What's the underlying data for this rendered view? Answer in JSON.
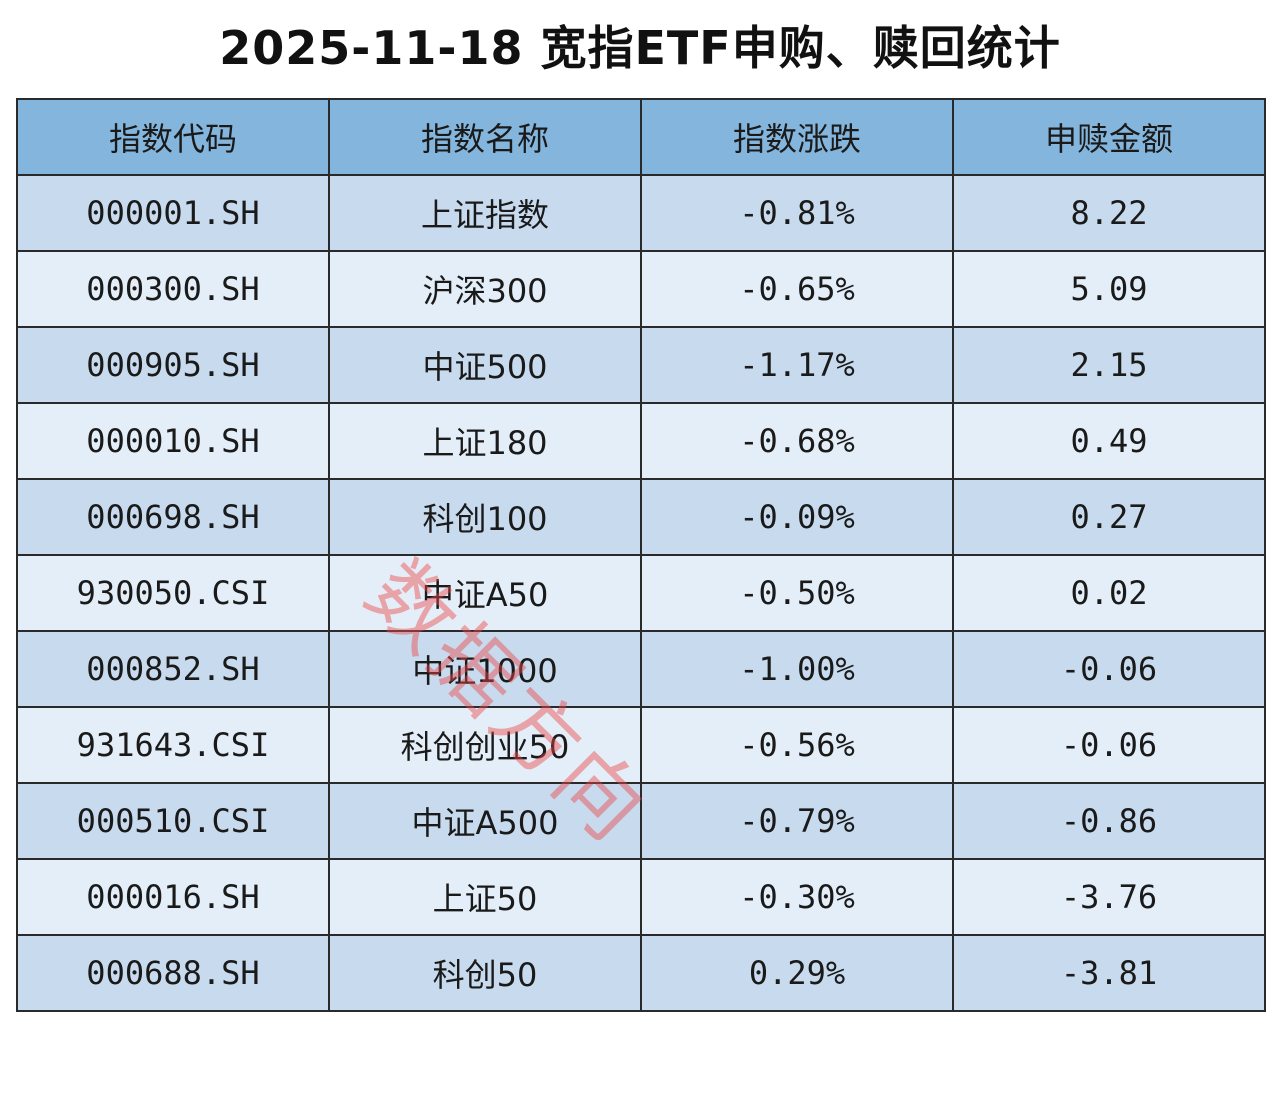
{
  "header": {
    "title": "2025-11-18 宽指ETF申购、赎回统计"
  },
  "table": {
    "columns": [
      "指数代码",
      "指数名称",
      "指数涨跌",
      "申赎金额"
    ],
    "rows": [
      [
        "000001.SH",
        "上证指数",
        "-0.81%",
        "8.22"
      ],
      [
        "000300.SH",
        "沪深300",
        "-0.65%",
        "5.09"
      ],
      [
        "000905.SH",
        "中证500",
        "-1.17%",
        "2.15"
      ],
      [
        "000010.SH",
        "上证180",
        "-0.68%",
        "0.49"
      ],
      [
        "000698.SH",
        "科创100",
        "-0.09%",
        "0.27"
      ],
      [
        "930050.CSI",
        "中证A50",
        "-0.50%",
        "0.02"
      ],
      [
        "000852.SH",
        "中证1000",
        "-1.00%",
        "-0.06"
      ],
      [
        "931643.CSI",
        "科创创业50",
        "-0.56%",
        "-0.06"
      ],
      [
        "000510.CSI",
        "中证A500",
        "-0.79%",
        "-0.86"
      ],
      [
        "000016.SH",
        "上证50",
        "-0.30%",
        "-3.76"
      ],
      [
        "000688.SH",
        "科创50",
        "0.29%",
        "-3.81"
      ]
    ]
  },
  "watermark": "数据方向"
}
